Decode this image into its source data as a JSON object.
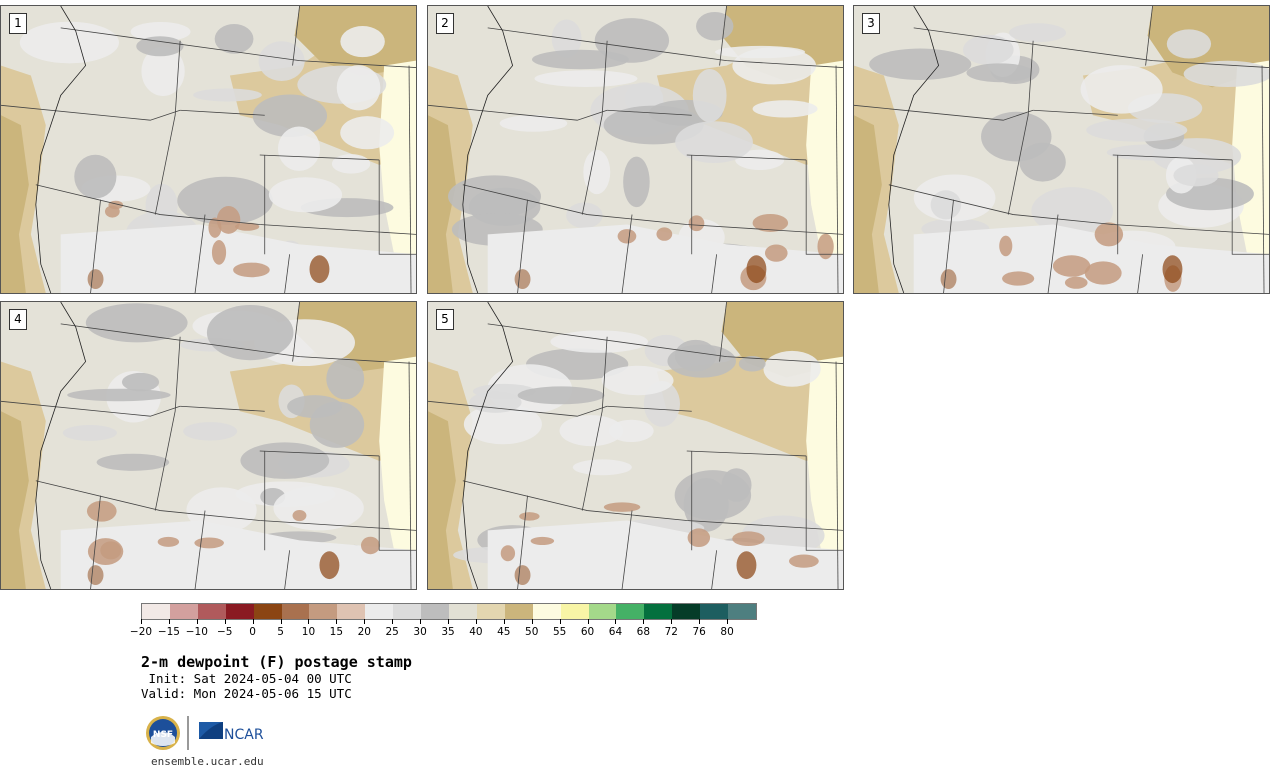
{
  "panels": [
    {
      "label": "1"
    },
    {
      "label": "2"
    },
    {
      "label": "3"
    },
    {
      "label": "4"
    },
    {
      "label": "5"
    }
  ],
  "colorbar": {
    "colors": [
      "#f2e9e6",
      "#d3a09e",
      "#b05a5c",
      "#8a1a22",
      "#8b4513",
      "#a9714f",
      "#c49b80",
      "#dfc3b2",
      "#ececec",
      "#dcdcdc",
      "#bdbdbd",
      "#e2e0d4",
      "#e3d6b0",
      "#cbb57c",
      "#fdfbe0",
      "#f8f5a6",
      "#a4d98a",
      "#45b166",
      "#04703e",
      "#053c28",
      "#1d5e60",
      "#4e7f80"
    ],
    "tick_labels": [
      "−20",
      "−15",
      "−10",
      "−5",
      "0",
      "5",
      "10",
      "15",
      "20",
      "25",
      "30",
      "35",
      "40",
      "45",
      "50",
      "55",
      "60",
      "64",
      "68",
      "72",
      "76",
      "80"
    ]
  },
  "text": {
    "title": "2-m dewpoint (F) postage stamp",
    "init": " Init: Sat 2024-05-04 00 UTC",
    "valid": "Valid: Mon 2024-05-06 15 UTC",
    "site": "ensemble.ucar.edu",
    "nsf": "NSF",
    "ncar": "NCAR"
  },
  "theme": {
    "land_light": "#e4e2d8",
    "tan": "#dcc99d",
    "dark_tan": "#cbb57c",
    "grey": "#bdbdbd",
    "light_grey": "#dcdcdc",
    "pale": "#ececec",
    "brown": "#c49b80",
    "dark_brown": "#8b4513",
    "yellow": "#fdfbe0"
  }
}
